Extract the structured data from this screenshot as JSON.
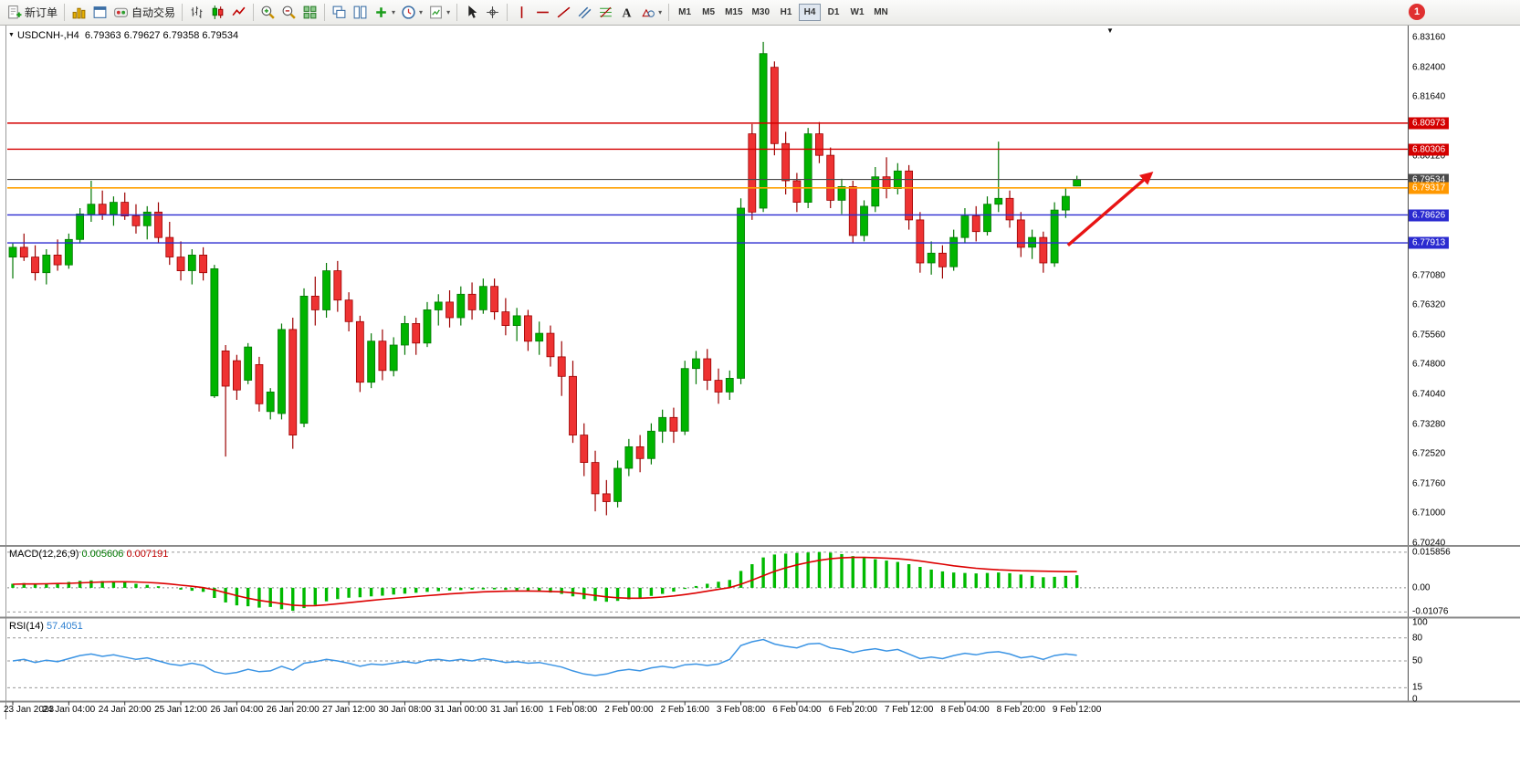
{
  "toolbar": {
    "items": [
      {
        "kind": "btn",
        "name": "new-order-button",
        "icon": "new-order-icon",
        "label": "新订单"
      },
      {
        "kind": "sep"
      },
      {
        "kind": "icon",
        "name": "market-watch-button",
        "icon": "market-watch-icon"
      },
      {
        "kind": "icon",
        "name": "data-window-button",
        "icon": "data-window-icon"
      },
      {
        "kind": "btn",
        "name": "auto-trading-button",
        "icon": "auto-trading-icon",
        "label": "自动交易"
      },
      {
        "kind": "sep"
      },
      {
        "kind": "icon",
        "name": "bar-chart-button",
        "icon": "bar-chart-icon"
      },
      {
        "kind": "icon",
        "name": "candlestick-button",
        "icon": "candlestick-icon"
      },
      {
        "kind": "icon",
        "name": "line-chart-button",
        "icon": "line-chart-icon"
      },
      {
        "kind": "sep"
      },
      {
        "kind": "icon",
        "name": "zoom-in-button",
        "icon": "zoom-in-icon"
      },
      {
        "kind": "icon",
        "name": "zoom-out-button",
        "icon": "zoom-out-icon"
      },
      {
        "k ind": "icon",
        "name": "tile-windows-button",
        "icon": "tile-windows-icon"
      },
      {
        "kind": "sep"
      },
      {
        "kind": "icon",
        "name": "cascade-windows-button",
        "icon": "cascade-windows-icon"
      },
      {
        "kind": "icon",
        "name": "tile-vertical-button",
        "icon": "tile-vertical-icon"
      },
      {
        "kind": "icon",
        "name": "indicators-button",
        "icon": "indicators-icon",
        "caret": true
      },
      {
        "kind": "icon",
        "name": "periods-button",
        "icon": "clock-icon",
        "caret": true
      },
      {
        "kind": "icon",
        "name": "templates-button",
        "icon": "template-icon",
        "caret": true
      },
      {
        "kind": "sep"
      },
      {
        "kind": "icon",
        "name": "cursor-button",
        "icon": "cursor-icon"
      },
      {
        "kind": "icon",
        "name": "crosshair-button",
        "icon": "crosshair-icon"
      },
      {
        "kind": "sep"
      },
      {
        "kind": "icon",
        "name": "vertical-line-button",
        "icon": "vertical-line-icon"
      },
      {
        "kind": "icon",
        "name": "horizontal-line-button",
        "icon": "horizontal-line-icon"
      },
      {
        "kind": "icon",
        "name": "trendline-button",
        "icon": "trendline-icon"
      },
      {
        "kind": "icon",
        "name": "channel-button",
        "icon": "channel-icon"
      },
      {
        "kind": "icon",
        "name": "fibonacci-button",
        "icon": "fibonacci-icon"
      },
      {
        "kind": "icon",
        "name": "text-button",
        "icon": "text-icon"
      },
      {
        "kind": "icon",
        "name": "shapes-button",
        "icon": "shapes-icon",
        "caret": true
      },
      {
        "kind": "sep"
      }
    ],
    "timeframes": [
      "M1",
      "M5",
      "M15",
      "M30",
      "H1",
      "H4",
      "D1",
      "W1",
      "MN"
    ],
    "active_timeframe": "H4",
    "notification_count": "1"
  },
  "chart_header": {
    "symbol_period": "USDCNH-,H4",
    "ohlc": "6.79363 6.79627 6.79358 6.79534"
  },
  "price_axis": {
    "labels": [
      "6.83160",
      "6.82400",
      "6.81640",
      "6.80880",
      "6.80120",
      "6.79360",
      "6.78600",
      "6.77840",
      "6.77080",
      "6.76320",
      "6.75560",
      "6.74800",
      "6.74040",
      "6.73280",
      "6.72520",
      "6.71760",
      "6.71000",
      "6.70240"
    ],
    "badges": [
      {
        "text": "6.80973",
        "price": 6.80973,
        "color": "#d40000"
      },
      {
        "text": "6.80306",
        "price": 6.80306,
        "color": "#d40000"
      },
      {
        "text": "6.79534",
        "price": 6.79534,
        "color": "#4a4a4a"
      },
      {
        "text": "6.79317",
        "price": 6.79317,
        "color": "#ff9800"
      },
      {
        "text": "6.78626",
        "price": 6.78626,
        "color": "#2b2bd0"
      },
      {
        "text": "6.77913",
        "price": 6.77913,
        "color": "#2b2bd0"
      }
    ]
  },
  "chart_data": {
    "type": "candlestick",
    "symbol": "USDCNH-",
    "timeframe": "H4",
    "current_bar": {
      "open": "6.79363",
      "high": "6.79627",
      "low": "6.79358",
      "close": "6.79534"
    },
    "axis_range": {
      "price_top": 6.8342,
      "price_bottom": 6.7019
    },
    "up_color": "#00b400",
    "up_stroke": "#047804",
    "down_color": "#ee3232",
    "down_stroke": "#9c0000",
    "time_labels": [
      "23 Jan 2023",
      "24 Jan 04:00",
      "24 Jan 20:00",
      "25 Jan 12:00",
      "26 Jan 04:00",
      "26 Jan 20:00",
      "27 Jan 12:00",
      "30 Jan 08:00",
      "31 Jan 00:00",
      "31 Jan 16:00",
      "1 Feb 08:00",
      "2 Feb 00:00",
      "2 Feb 16:00",
      "3 Feb 08:00",
      "6 Feb 04:00",
      "6 Feb 20:00",
      "7 Feb 12:00",
      "8 Feb 04:00",
      "8 Feb 20:00",
      "9 Feb 12:00"
    ],
    "hlines": [
      {
        "price": 6.80973,
        "color": "#d40000",
        "width": 1.4
      },
      {
        "price": 6.80306,
        "color": "#d40000",
        "width": 1.4
      },
      {
        "price": 6.79534,
        "color": "#4a4a4a",
        "width": 1.2
      },
      {
        "price": 6.79317,
        "color": "#ffa000",
        "width": 1.6
      },
      {
        "price": 6.78626,
        "color": "#2b2bd0",
        "width": 1.4
      },
      {
        "price": 6.77913,
        "color": "#2b2bd0",
        "width": 1.4
      }
    ],
    "arrow": {
      "from_index": 94.2,
      "from_price": 6.7785,
      "to_index": 101.6,
      "to_price": 6.7968,
      "color": "#e81414"
    },
    "candles": [
      [
        6.7755,
        6.779,
        6.77,
        6.778
      ],
      [
        6.778,
        6.7815,
        6.7745,
        6.7755
      ],
      [
        6.7755,
        6.7785,
        6.7695,
        6.7715
      ],
      [
        6.7715,
        6.7775,
        6.7685,
        6.776
      ],
      [
        6.776,
        6.78,
        6.772,
        6.7735
      ],
      [
        6.7735,
        6.7815,
        6.7725,
        6.78
      ],
      [
        6.78,
        6.788,
        6.779,
        6.7865
      ],
      [
        6.7865,
        6.795,
        6.7845,
        6.789
      ],
      [
        6.789,
        6.7925,
        6.785,
        6.7865
      ],
      [
        6.7865,
        6.791,
        6.7835,
        6.7895
      ],
      [
        6.7895,
        6.792,
        6.785,
        6.786
      ],
      [
        6.786,
        6.789,
        6.7815,
        6.7835
      ],
      [
        6.7835,
        6.7885,
        6.78,
        6.787
      ],
      [
        6.787,
        6.7895,
        6.779,
        6.7805
      ],
      [
        6.7805,
        6.7845,
        6.7735,
        6.7755
      ],
      [
        6.7755,
        6.7795,
        6.7695,
        6.772
      ],
      [
        6.772,
        6.7775,
        6.7685,
        6.776
      ],
      [
        6.776,
        6.778,
        6.7695,
        6.7715
      ],
      [
        6.74,
        6.7735,
        6.7395,
        6.7725
      ],
      [
        6.7515,
        6.753,
        6.7245,
        6.7425
      ],
      [
        6.749,
        6.7505,
        6.739,
        6.7415
      ],
      [
        6.744,
        6.7535,
        6.743,
        6.7525
      ],
      [
        6.748,
        6.75,
        6.736,
        6.738
      ],
      [
        6.736,
        6.742,
        6.734,
        6.741
      ],
      [
        6.7355,
        6.7585,
        6.734,
        6.757
      ],
      [
        6.757,
        6.76,
        6.7265,
        6.73
      ],
      [
        6.733,
        6.7675,
        6.732,
        6.7655
      ],
      [
        6.7655,
        6.7705,
        6.758,
        6.762
      ],
      [
        6.762,
        6.774,
        6.76,
        6.772
      ],
      [
        6.772,
        6.7745,
        6.7615,
        6.7645
      ],
      [
        6.7645,
        6.7665,
        6.7565,
        6.759
      ],
      [
        6.759,
        6.7605,
        6.741,
        6.7435
      ],
      [
        6.7435,
        6.756,
        6.742,
        6.754
      ],
      [
        6.754,
        6.757,
        6.744,
        6.7465
      ],
      [
        6.7465,
        6.755,
        6.745,
        6.753
      ],
      [
        6.753,
        6.7605,
        6.7505,
        6.7585
      ],
      [
        6.7585,
        6.76,
        6.7505,
        6.7535
      ],
      [
        6.7535,
        6.764,
        6.7525,
        6.762
      ],
      [
        6.762,
        6.766,
        6.758,
        6.764
      ],
      [
        6.764,
        6.767,
        6.7575,
        6.76
      ],
      [
        6.76,
        6.768,
        6.758,
        6.766
      ],
      [
        6.766,
        6.769,
        6.7595,
        6.762
      ],
      [
        6.762,
        6.77,
        6.761,
        6.768
      ],
      [
        6.768,
        6.77,
        6.7595,
        6.7615
      ],
      [
        6.7615,
        6.765,
        6.7555,
        6.758
      ],
      [
        6.758,
        6.7625,
        6.754,
        6.7605
      ],
      [
        6.7605,
        6.762,
        6.7515,
        6.754
      ],
      [
        6.754,
        6.759,
        6.7505,
        6.756
      ],
      [
        6.756,
        6.758,
        6.7475,
        6.75
      ],
      [
        6.75,
        6.754,
        6.74,
        6.745
      ],
      [
        6.745,
        6.749,
        6.728,
        6.73
      ],
      [
        6.73,
        6.733,
        6.7195,
        6.723
      ],
      [
        6.723,
        6.726,
        6.7105,
        6.715
      ],
      [
        6.715,
        6.7185,
        6.7095,
        6.713
      ],
      [
        6.713,
        6.7235,
        6.7115,
        6.7215
      ],
      [
        6.7215,
        6.729,
        6.7195,
        6.727
      ],
      [
        6.727,
        6.73,
        6.7205,
        6.724
      ],
      [
        6.724,
        6.733,
        6.7225,
        6.731
      ],
      [
        6.731,
        6.7365,
        6.728,
        6.7345
      ],
      [
        6.7345,
        6.737,
        6.728,
        6.731
      ],
      [
        6.731,
        6.749,
        6.73,
        6.747
      ],
      [
        6.747,
        6.7515,
        6.743,
        6.7495
      ],
      [
        6.7495,
        6.752,
        6.7415,
        6.744
      ],
      [
        6.744,
        6.747,
        6.738,
        6.741
      ],
      [
        6.741,
        6.7465,
        6.739,
        6.7445
      ],
      [
        6.7445,
        6.7905,
        6.743,
        6.788
      ],
      [
        6.807,
        6.8095,
        6.785,
        6.787
      ],
      [
        6.788,
        6.8305,
        6.787,
        6.8275
      ],
      [
        6.824,
        6.8255,
        6.8015,
        6.8045
      ],
      [
        6.8045,
        6.8075,
        6.7915,
        6.795
      ],
      [
        6.795,
        6.797,
        6.787,
        6.7895
      ],
      [
        6.7895,
        6.8085,
        6.788,
        6.807
      ],
      [
        6.807,
        6.81,
        6.7995,
        6.8015
      ],
      [
        6.8015,
        6.8035,
        6.788,
        6.79
      ],
      [
        6.79,
        6.7955,
        6.7865,
        6.7935
      ],
      [
        6.7935,
        6.795,
        6.779,
        6.781
      ],
      [
        6.781,
        6.79,
        6.7795,
        6.7885
      ],
      [
        6.7885,
        6.7985,
        6.787,
        6.796
      ],
      [
        6.796,
        6.801,
        6.7905,
        6.793
      ],
      [
        6.793,
        6.7995,
        6.7915,
        6.7975
      ],
      [
        6.7975,
        6.799,
        6.7825,
        6.785
      ],
      [
        6.785,
        6.787,
        6.7715,
        6.774
      ],
      [
        6.774,
        6.7795,
        6.771,
        6.7765
      ],
      [
        6.7765,
        6.7785,
        6.77,
        6.773
      ],
      [
        6.773,
        6.7825,
        6.772,
        6.7805
      ],
      [
        6.7805,
        6.788,
        6.779,
        6.786
      ],
      [
        6.786,
        6.7885,
        6.7795,
        6.782
      ],
      [
        6.782,
        6.791,
        6.781,
        6.789
      ],
      [
        6.789,
        6.805,
        6.787,
        6.7905
      ],
      [
        6.7905,
        6.7925,
        6.783,
        6.785
      ],
      [
        6.785,
        6.787,
        6.7755,
        6.778
      ],
      [
        6.778,
        6.7825,
        6.775,
        6.7805
      ],
      [
        6.7805,
        6.782,
        6.7715,
        6.774
      ],
      [
        6.774,
        6.7895,
        6.773,
        6.7875
      ],
      [
        6.7875,
        6.793,
        6.7855,
        6.791
      ],
      [
        6.79363,
        6.79627,
        6.79358,
        6.79534
      ]
    ]
  },
  "macd": {
    "label": "MACD(12,26,9)",
    "value_main": "0.005606",
    "value_signal": "0.007191",
    "axis_labels": [
      "0.015856",
      "0.00",
      "-0.01076"
    ],
    "axis_max": 0.015856,
    "axis_min": -0.01076,
    "range_top": 0.017,
    "range_bottom": -0.0118,
    "histogram_color": "#00ba00",
    "signal_color": "#dc0000",
    "histogram": [
      0.0018,
      0.0021,
      0.0016,
      0.0019,
      0.0022,
      0.0026,
      0.0031,
      0.0033,
      0.003,
      0.0028,
      0.0024,
      0.0018,
      0.0013,
      0.0007,
      0.0,
      -0.0008,
      -0.0013,
      -0.0018,
      -0.0045,
      -0.0065,
      -0.0078,
      -0.0082,
      -0.0088,
      -0.0085,
      -0.0095,
      -0.0102,
      -0.009,
      -0.0076,
      -0.006,
      -0.005,
      -0.0044,
      -0.0042,
      -0.0038,
      -0.0035,
      -0.003,
      -0.0026,
      -0.0022,
      -0.0018,
      -0.0015,
      -0.0012,
      -0.001,
      -0.0008,
      -0.0007,
      -0.0007,
      -0.0009,
      -0.0011,
      -0.0014,
      -0.0017,
      -0.0021,
      -0.0027,
      -0.0038,
      -0.005,
      -0.0058,
      -0.0062,
      -0.0058,
      -0.0051,
      -0.0044,
      -0.0036,
      -0.0027,
      -0.0017,
      -0.0005,
      0.0008,
      0.0018,
      0.0027,
      0.0035,
      0.0075,
      0.0105,
      0.0135,
      0.0148,
      0.0152,
      0.0155,
      0.0157,
      0.0159,
      0.0156,
      0.015,
      0.0141,
      0.0133,
      0.0127,
      0.0121,
      0.0115,
      0.0105,
      0.0093,
      0.0081,
      0.0073,
      0.0068,
      0.0066,
      0.0064,
      0.0066,
      0.0068,
      0.0065,
      0.0059,
      0.0053,
      0.0047,
      0.0049,
      0.0053,
      0.0056
    ],
    "signal": [
      0.0016,
      0.0017,
      0.0017,
      0.0018,
      0.0019,
      0.002,
      0.0022,
      0.0024,
      0.0026,
      0.0027,
      0.0027,
      0.0026,
      0.0024,
      0.0021,
      0.0017,
      0.0012,
      0.0007,
      0.0001,
      -0.0009,
      -0.0022,
      -0.0035,
      -0.0046,
      -0.0056,
      -0.0063,
      -0.007,
      -0.0077,
      -0.008,
      -0.0079,
      -0.0076,
      -0.0071,
      -0.0066,
      -0.0061,
      -0.0056,
      -0.0051,
      -0.0047,
      -0.0043,
      -0.0039,
      -0.0035,
      -0.0031,
      -0.0027,
      -0.0024,
      -0.0021,
      -0.0018,
      -0.0016,
      -0.0015,
      -0.0014,
      -0.0014,
      -0.0015,
      -0.0016,
      -0.0018,
      -0.0022,
      -0.0028,
      -0.0034,
      -0.004,
      -0.0044,
      -0.0046,
      -0.0046,
      -0.0044,
      -0.0041,
      -0.0036,
      -0.003,
      -0.0023,
      -0.0015,
      -0.0007,
      0.0001,
      0.0016,
      0.0034,
      0.0054,
      0.0073,
      0.0089,
      0.0102,
      0.0113,
      0.0122,
      0.0129,
      0.0133,
      0.0135,
      0.0135,
      0.0134,
      0.0132,
      0.0129,
      0.0125,
      0.0119,
      0.0112,
      0.0105,
      0.0098,
      0.0092,
      0.0087,
      0.0083,
      0.008,
      0.0078,
      0.0076,
      0.0075,
      0.0074,
      0.0073,
      0.0072,
      0.0072
    ]
  },
  "rsi": {
    "label": "RSI(14)",
    "value": "57.4051",
    "line_color": "#3b94e4",
    "axis_labels": [
      {
        "v": 100,
        "t": "100"
      },
      {
        "v": 80,
        "t": "80"
      },
      {
        "v": 50,
        "t": "50"
      },
      {
        "v": 15,
        "t": "15"
      },
      {
        "v": 0,
        "t": "0"
      }
    ],
    "levels": [
      80,
      50,
      15
    ],
    "values": [
      50,
      52,
      48,
      51,
      49,
      53,
      57,
      59,
      56,
      58,
      55,
      52,
      54,
      50,
      46,
      44,
      47,
      44,
      36,
      33,
      35,
      39,
      36,
      37,
      43,
      38,
      47,
      49,
      52,
      50,
      47,
      43,
      46,
      45,
      47,
      49,
      47,
      51,
      52,
      50,
      52,
      50,
      53,
      51,
      48,
      49,
      47,
      48,
      45,
      42,
      37,
      33,
      31,
      33,
      37,
      39,
      37,
      41,
      43,
      41,
      45,
      46,
      44,
      46,
      52,
      70,
      75,
      78,
      72,
      69,
      67,
      72,
      73,
      67,
      65,
      61,
      64,
      66,
      63,
      65,
      59,
      53,
      55,
      53,
      57,
      60,
      58,
      61,
      62,
      59,
      54,
      56,
      52,
      57,
      59,
      57.4
    ]
  }
}
